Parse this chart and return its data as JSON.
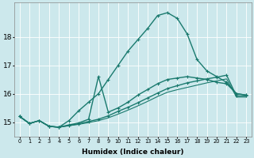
{
  "xlabel": "Humidex (Indice chaleur)",
  "bg_color": "#cce8ec",
  "line_color": "#1a7a6e",
  "grid_color": "#ffffff",
  "xlim": [
    -0.5,
    23.5
  ],
  "ylim": [
    14.5,
    19.2
  ],
  "yticks": [
    15,
    16,
    17,
    18
  ],
  "xticks": [
    0,
    1,
    2,
    3,
    4,
    5,
    6,
    7,
    8,
    9,
    10,
    11,
    12,
    13,
    14,
    15,
    16,
    17,
    18,
    19,
    20,
    21,
    22,
    23
  ],
  "series": [
    {
      "x": [
        0,
        1,
        2,
        3,
        4,
        5,
        6,
        7,
        8,
        9,
        10,
        11,
        12,
        13,
        14,
        15,
        16,
        17,
        18,
        19,
        20,
        21,
        22,
        23
      ],
      "y": [
        15.2,
        14.95,
        15.05,
        14.85,
        14.82,
        15.05,
        15.4,
        15.7,
        16.0,
        16.5,
        17.0,
        17.5,
        17.9,
        18.3,
        18.75,
        18.85,
        18.65,
        18.1,
        17.2,
        16.8,
        16.6,
        16.4,
        16.0,
        15.95
      ],
      "marker": true,
      "lw": 1.0
    },
    {
      "x": [
        0,
        1,
        2,
        3,
        4,
        5,
        6,
        7,
        8,
        9,
        10,
        11,
        12,
        13,
        14,
        15,
        16,
        17,
        18,
        19,
        20,
        21,
        22,
        23
      ],
      "y": [
        15.2,
        14.95,
        15.05,
        14.85,
        14.82,
        14.9,
        14.97,
        15.1,
        16.6,
        15.35,
        15.5,
        15.7,
        15.95,
        16.15,
        16.35,
        16.5,
        16.55,
        16.6,
        16.55,
        16.5,
        16.4,
        16.35,
        16.0,
        15.95
      ],
      "marker": true,
      "lw": 1.0
    },
    {
      "x": [
        0,
        1,
        2,
        3,
        4,
        5,
        6,
        7,
        8,
        9,
        10,
        11,
        12,
        13,
        14,
        15,
        16,
        17,
        18,
        19,
        20,
        21,
        22,
        23
      ],
      "y": [
        15.2,
        14.95,
        15.05,
        14.85,
        14.82,
        14.88,
        14.94,
        15.02,
        15.1,
        15.22,
        15.38,
        15.52,
        15.68,
        15.85,
        16.02,
        16.18,
        16.28,
        16.38,
        16.45,
        16.52,
        16.58,
        16.65,
        15.92,
        15.92
      ],
      "marker": true,
      "lw": 1.0
    },
    {
      "x": [
        0,
        1,
        2,
        3,
        4,
        5,
        6,
        7,
        8,
        9,
        10,
        11,
        12,
        13,
        14,
        15,
        16,
        17,
        18,
        19,
        20,
        21,
        22,
        23
      ],
      "y": [
        15.2,
        14.95,
        15.05,
        14.85,
        14.82,
        14.87,
        14.92,
        14.98,
        15.05,
        15.15,
        15.28,
        15.42,
        15.57,
        15.73,
        15.9,
        16.05,
        16.14,
        16.22,
        16.3,
        16.38,
        16.45,
        16.52,
        15.88,
        15.88
      ],
      "marker": false,
      "lw": 0.8
    }
  ]
}
